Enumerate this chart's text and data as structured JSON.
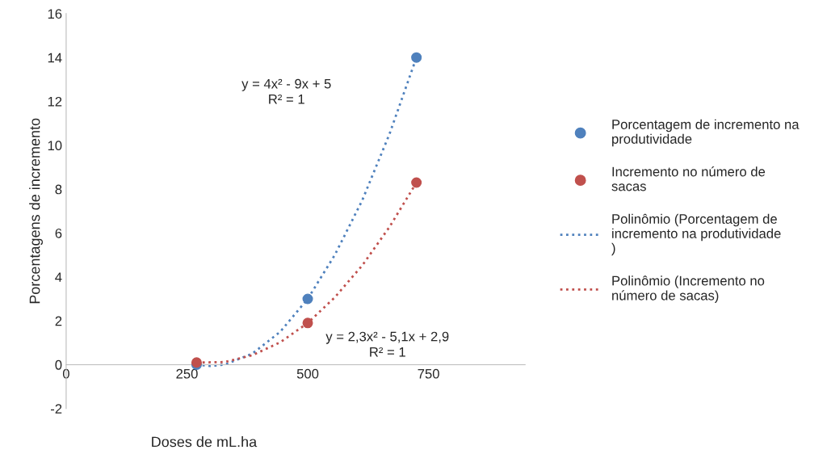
{
  "chart_data": {
    "type": "scatter",
    "xlabel": "Doses de mL.ha",
    "ylabel": "Porcentagens de incremento",
    "xlim": [
      0,
      950
    ],
    "xticks": [
      0,
      250,
      500,
      750
    ],
    "ylim": [
      -2,
      16
    ],
    "yticks": [
      -2,
      0,
      2,
      4,
      6,
      8,
      10,
      12,
      14,
      16
    ],
    "grid": false,
    "legend": "right",
    "x": [
      270,
      500,
      725
    ],
    "series": [
      {
        "name": "Porcentagem de incremento na produtividade",
        "color": "#4f81bd",
        "marker": "circle",
        "values": [
          0,
          3,
          14
        ]
      },
      {
        "name": "Incremento no número de sacas",
        "color": "#c0504d",
        "marker": "circle",
        "values": [
          0.1,
          1.9,
          8.3
        ]
      },
      {
        "name": "Polinômio (Porcentagem de incremento na produtividade )",
        "type": "line",
        "line_style": "dotted",
        "color": "#4f81bd",
        "x": [
          270,
          299,
          328,
          385,
          443,
          500,
          556,
          613,
          669,
          725
        ],
        "values": [
          0,
          -0.06,
          0,
          0.5,
          1.5,
          3,
          5,
          7.5,
          10.5,
          14
        ]
      },
      {
        "name": "Polinômio (Incremento no número de sacas)",
        "type": "line",
        "line_style": "dotted",
        "color": "#c0504d",
        "x": [
          270,
          328,
          385,
          443,
          500,
          556,
          613,
          669,
          725
        ],
        "values": [
          0.1,
          0.12,
          0.43,
          1.02,
          1.9,
          3.07,
          4.53,
          6.27,
          8.3
        ]
      }
    ],
    "annotations": [
      "y = 4x² - 9x + 5\nR² = 1",
      "y = 2,3x² - 5,1x + 2,9\nR² = 1"
    ]
  }
}
